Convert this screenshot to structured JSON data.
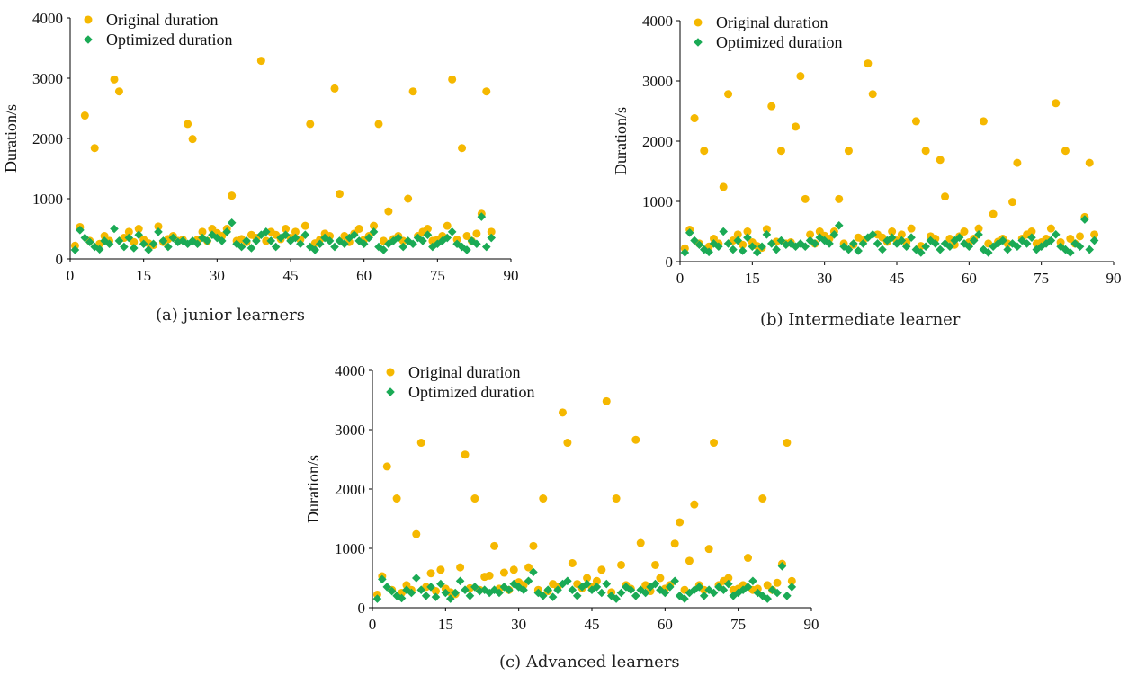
{
  "colors": {
    "original": "#f5b800",
    "optimized": "#1aaa55",
    "axis": "#000000"
  },
  "legend": {
    "original_label": "Original duration",
    "optimized_label": "Optimized duration"
  },
  "captions": {
    "a": "(a) junior learners",
    "b": "(b) Intermediate learner",
    "c": "(c) Advanced learners"
  },
  "chart_data": [
    {
      "id": "a",
      "type": "scatter",
      "title": "",
      "xlabel": "",
      "ylabel": "Duration/s",
      "xlim": [
        0,
        90
      ],
      "ylim": [
        0,
        4000
      ],
      "xticks": [
        0,
        15,
        30,
        45,
        60,
        75,
        90
      ],
      "yticks": [
        0,
        1000,
        2000,
        3000,
        4000
      ],
      "legend_position": "top-left",
      "series": [
        {
          "name": "Original duration",
          "marker": "circle",
          "x": [
            1,
            2,
            3,
            4,
            5,
            6,
            7,
            8,
            9,
            10,
            11,
            12,
            13,
            14,
            15,
            16,
            17,
            18,
            19,
            20,
            21,
            22,
            23,
            24,
            25,
            26,
            27,
            28,
            29,
            30,
            31,
            32,
            33,
            34,
            35,
            36,
            37,
            38,
            39,
            40,
            41,
            42,
            43,
            44,
            45,
            46,
            47,
            48,
            49,
            50,
            51,
            52,
            53,
            54,
            55,
            56,
            57,
            58,
            59,
            60,
            61,
            62,
            63,
            64,
            65,
            66,
            67,
            68,
            69,
            70,
            71,
            72,
            73,
            74,
            75,
            76,
            77,
            78,
            79,
            80,
            81,
            82,
            83,
            84,
            85,
            86
          ],
          "y": [
            220,
            530,
            2380,
            300,
            1840,
            250,
            380,
            300,
            2980,
            2780,
            350,
            450,
            280,
            500,
            320,
            260,
            230,
            540,
            280,
            330,
            380,
            300,
            320,
            2240,
            1990,
            320,
            450,
            300,
            500,
            430,
            380,
            500,
            1050,
            300,
            330,
            280,
            400,
            350,
            3290,
            300,
            450,
            400,
            330,
            500,
            350,
            450,
            320,
            550,
            2240,
            260,
            320,
            420,
            380,
            2830,
            1080,
            380,
            280,
            420,
            500,
            320,
            380,
            550,
            2240,
            300,
            790,
            330,
            380,
            300,
            1000,
            2780,
            380,
            450,
            500,
            300,
            320,
            380,
            550,
            2980,
            320,
            1840,
            380,
            300,
            420,
            750,
            2780,
            450
          ]
        },
        {
          "name": "Optimized duration",
          "marker": "diamond",
          "x": [
            1,
            2,
            3,
            4,
            5,
            6,
            7,
            8,
            9,
            10,
            11,
            12,
            13,
            14,
            15,
            16,
            17,
            18,
            19,
            20,
            21,
            22,
            23,
            24,
            25,
            26,
            27,
            28,
            29,
            30,
            31,
            32,
            33,
            34,
            35,
            36,
            37,
            38,
            39,
            40,
            41,
            42,
            43,
            44,
            45,
            46,
            47,
            48,
            49,
            50,
            51,
            52,
            53,
            54,
            55,
            56,
            57,
            58,
            59,
            60,
            61,
            62,
            63,
            64,
            65,
            66,
            67,
            68,
            69,
            70,
            71,
            72,
            73,
            74,
            75,
            76,
            77,
            78,
            79,
            80,
            81,
            82,
            83,
            84,
            85,
            86
          ],
          "y": [
            150,
            480,
            350,
            280,
            200,
            160,
            300,
            250,
            500,
            300,
            200,
            350,
            180,
            400,
            250,
            150,
            250,
            450,
            300,
            200,
            350,
            280,
            300,
            250,
            300,
            250,
            350,
            300,
            400,
            350,
            300,
            450,
            600,
            250,
            200,
            300,
            180,
            300,
            400,
            450,
            300,
            200,
            350,
            400,
            300,
            350,
            250,
            400,
            200,
            150,
            250,
            350,
            300,
            200,
            300,
            250,
            350,
            400,
            300,
            250,
            350,
            450,
            200,
            150,
            250,
            300,
            350,
            200,
            300,
            250,
            350,
            300,
            400,
            200,
            250,
            300,
            350,
            450,
            250,
            200,
            150,
            300,
            250,
            700,
            200,
            350
          ]
        }
      ]
    },
    {
      "id": "b",
      "type": "scatter",
      "title": "",
      "xlabel": "",
      "ylabel": "Duration/s",
      "xlim": [
        0,
        90
      ],
      "ylim": [
        0,
        4000
      ],
      "xticks": [
        0,
        15,
        30,
        45,
        60,
        75,
        90
      ],
      "yticks": [
        0,
        1000,
        2000,
        3000,
        4000
      ],
      "legend_position": "top-left",
      "series": [
        {
          "name": "Original duration",
          "marker": "circle",
          "x": [
            1,
            2,
            3,
            4,
            5,
            6,
            7,
            8,
            9,
            10,
            11,
            12,
            13,
            14,
            15,
            16,
            17,
            18,
            19,
            20,
            21,
            22,
            23,
            24,
            25,
            26,
            27,
            28,
            29,
            30,
            31,
            32,
            33,
            34,
            35,
            36,
            37,
            38,
            39,
            40,
            41,
            42,
            43,
            44,
            45,
            46,
            47,
            48,
            49,
            50,
            51,
            52,
            53,
            54,
            55,
            56,
            57,
            58,
            59,
            60,
            61,
            62,
            63,
            64,
            65,
            66,
            67,
            68,
            69,
            70,
            71,
            72,
            73,
            74,
            75,
            76,
            77,
            78,
            79,
            80,
            81,
            82,
            83,
            84,
            85,
            86
          ],
          "y": [
            220,
            530,
            2380,
            300,
            1840,
            250,
            380,
            300,
            1240,
            2780,
            350,
            450,
            280,
            500,
            320,
            260,
            230,
            540,
            2580,
            330,
            1840,
            300,
            320,
            2240,
            3080,
            1040,
            450,
            300,
            500,
            430,
            380,
            500,
            1040,
            300,
            1840,
            280,
            400,
            350,
            3290,
            2780,
            450,
            400,
            330,
            500,
            350,
            450,
            320,
            550,
            2330,
            260,
            1840,
            420,
            380,
            1690,
            1080,
            380,
            280,
            420,
            500,
            320,
            380,
            550,
            2330,
            300,
            790,
            330,
            380,
            300,
            990,
            1640,
            380,
            450,
            500,
            300,
            320,
            380,
            550,
            2630,
            320,
            1840,
            380,
            300,
            420,
            740,
            1640,
            450
          ]
        },
        {
          "name": "Optimized duration",
          "marker": "diamond",
          "x": [
            1,
            2,
            3,
            4,
            5,
            6,
            7,
            8,
            9,
            10,
            11,
            12,
            13,
            14,
            15,
            16,
            17,
            18,
            19,
            20,
            21,
            22,
            23,
            24,
            25,
            26,
            27,
            28,
            29,
            30,
            31,
            32,
            33,
            34,
            35,
            36,
            37,
            38,
            39,
            40,
            41,
            42,
            43,
            44,
            45,
            46,
            47,
            48,
            49,
            50,
            51,
            52,
            53,
            54,
            55,
            56,
            57,
            58,
            59,
            60,
            61,
            62,
            63,
            64,
            65,
            66,
            67,
            68,
            69,
            70,
            71,
            72,
            73,
            74,
            75,
            76,
            77,
            78,
            79,
            80,
            81,
            82,
            83,
            84,
            85,
            86
          ],
          "y": [
            150,
            480,
            350,
            280,
            200,
            160,
            300,
            250,
            500,
            300,
            200,
            350,
            180,
            400,
            250,
            150,
            250,
            450,
            300,
            200,
            350,
            280,
            300,
            250,
            300,
            250,
            350,
            300,
            400,
            350,
            300,
            450,
            600,
            250,
            200,
            300,
            180,
            300,
            400,
            450,
            300,
            200,
            350,
            400,
            300,
            350,
            250,
            400,
            200,
            150,
            250,
            350,
            300,
            200,
            300,
            250,
            350,
            400,
            300,
            250,
            350,
            450,
            200,
            150,
            250,
            300,
            350,
            200,
            300,
            250,
            350,
            300,
            400,
            200,
            250,
            300,
            350,
            450,
            250,
            200,
            150,
            300,
            250,
            700,
            200,
            350
          ]
        }
      ]
    },
    {
      "id": "c",
      "type": "scatter",
      "title": "",
      "xlabel": "",
      "ylabel": "Duration/s",
      "xlim": [
        0,
        90
      ],
      "ylim": [
        0,
        4000
      ],
      "xticks": [
        0,
        15,
        30,
        45,
        60,
        75,
        90
      ],
      "yticks": [
        0,
        1000,
        2000,
        3000,
        4000
      ],
      "legend_position": "top-left",
      "series": [
        {
          "name": "Original duration",
          "marker": "circle",
          "x": [
            1,
            2,
            3,
            4,
            5,
            6,
            7,
            8,
            9,
            10,
            11,
            12,
            13,
            14,
            15,
            16,
            17,
            18,
            19,
            20,
            21,
            22,
            23,
            24,
            25,
            26,
            27,
            28,
            29,
            30,
            31,
            32,
            33,
            34,
            35,
            36,
            37,
            38,
            39,
            40,
            41,
            42,
            43,
            44,
            45,
            46,
            47,
            48,
            49,
            50,
            51,
            52,
            53,
            54,
            55,
            56,
            57,
            58,
            59,
            60,
            61,
            62,
            63,
            64,
            65,
            66,
            67,
            68,
            69,
            70,
            71,
            72,
            73,
            74,
            75,
            76,
            77,
            78,
            79,
            80,
            81,
            82,
            83,
            84,
            85,
            86
          ],
          "y": [
            220,
            530,
            2380,
            300,
            1840,
            250,
            380,
            300,
            1240,
            2780,
            350,
            580,
            280,
            640,
            320,
            260,
            230,
            680,
            2580,
            330,
            1840,
            300,
            520,
            540,
            1040,
            320,
            590,
            300,
            640,
            430,
            380,
            680,
            1040,
            300,
            1840,
            280,
            400,
            350,
            3290,
            2780,
            750,
            400,
            330,
            500,
            350,
            450,
            640,
            3480,
            260,
            1840,
            720,
            380,
            320,
            2830,
            1090,
            380,
            280,
            720,
            500,
            320,
            380,
            1080,
            1440,
            300,
            790,
            1740,
            380,
            300,
            990,
            2780,
            380,
            450,
            500,
            300,
            320,
            380,
            840,
            300,
            320,
            1840,
            380,
            300,
            420,
            740,
            2780,
            450
          ]
        },
        {
          "name": "Optimized duration",
          "marker": "diamond",
          "x": [
            1,
            2,
            3,
            4,
            5,
            6,
            7,
            8,
            9,
            10,
            11,
            12,
            13,
            14,
            15,
            16,
            17,
            18,
            19,
            20,
            21,
            22,
            23,
            24,
            25,
            26,
            27,
            28,
            29,
            30,
            31,
            32,
            33,
            34,
            35,
            36,
            37,
            38,
            39,
            40,
            41,
            42,
            43,
            44,
            45,
            46,
            47,
            48,
            49,
            50,
            51,
            52,
            53,
            54,
            55,
            56,
            57,
            58,
            59,
            60,
            61,
            62,
            63,
            64,
            65,
            66,
            67,
            68,
            69,
            70,
            71,
            72,
            73,
            74,
            75,
            76,
            77,
            78,
            79,
            80,
            81,
            82,
            83,
            84,
            85,
            86
          ],
          "y": [
            150,
            480,
            350,
            280,
            200,
            160,
            300,
            250,
            500,
            300,
            200,
            350,
            180,
            400,
            250,
            150,
            250,
            450,
            300,
            200,
            350,
            280,
            300,
            250,
            300,
            250,
            350,
            300,
            400,
            350,
            300,
            450,
            600,
            250,
            200,
            300,
            180,
            300,
            400,
            450,
            300,
            200,
            350,
            400,
            300,
            350,
            250,
            400,
            200,
            150,
            250,
            350,
            300,
            200,
            300,
            250,
            350,
            400,
            300,
            250,
            350,
            450,
            200,
            150,
            250,
            300,
            350,
            200,
            300,
            250,
            350,
            300,
            400,
            200,
            250,
            300,
            350,
            450,
            250,
            200,
            150,
            300,
            250,
            700,
            200,
            350
          ]
        }
      ]
    }
  ]
}
